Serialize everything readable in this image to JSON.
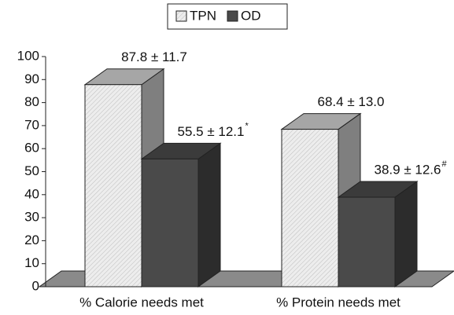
{
  "chart_data": {
    "type": "bar3d",
    "categories": [
      "% Calorie needs met",
      "% Protein needs met"
    ],
    "series": [
      {
        "name": "TPN",
        "color": "#e6e6e6",
        "pattern": "hatch",
        "values": [
          87.8,
          68.4
        ],
        "value_labels": [
          "87.8 ± 11.7",
          "68.4 ± 13.0"
        ]
      },
      {
        "name": "OD",
        "color": "#4a4a4a",
        "values": [
          55.5,
          38.9
        ],
        "value_labels": [
          "55.5 ± 12.1",
          "38.9 ± 12.6"
        ],
        "superscripts": [
          "*",
          "#"
        ]
      }
    ],
    "ylim": [
      0,
      100
    ],
    "yticks": [
      0,
      10,
      20,
      30,
      40,
      50,
      60,
      70,
      80,
      90,
      100
    ],
    "legend": "top"
  }
}
